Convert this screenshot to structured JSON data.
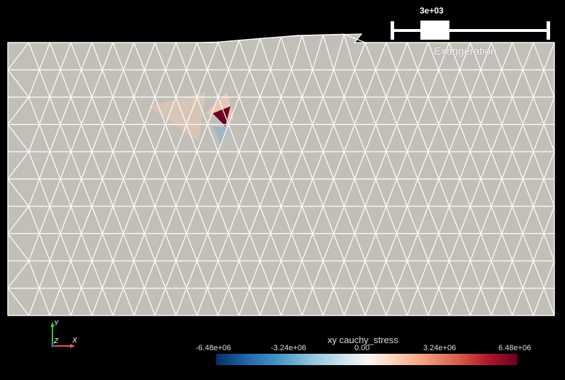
{
  "viewport": {
    "background": "#000000",
    "mesh_fill": "#c2bfb9",
    "mesh_edge_color": "#ffffff"
  },
  "exaggeration": {
    "value_label": "3e+03",
    "label": "Exaggeration"
  },
  "axes": {
    "x_label": "X",
    "y_label": "Y",
    "z_label": "Z"
  },
  "colorbar": {
    "title": "xy cauchy_stress",
    "ticks": [
      "-6.48e+06",
      "-3.24e+06",
      "0.00",
      "3.24e+06",
      "6.48e+06"
    ],
    "colormap": "Cool to Warm (blue-white-red)",
    "range": [
      -6480000,
      6480000
    ]
  }
}
